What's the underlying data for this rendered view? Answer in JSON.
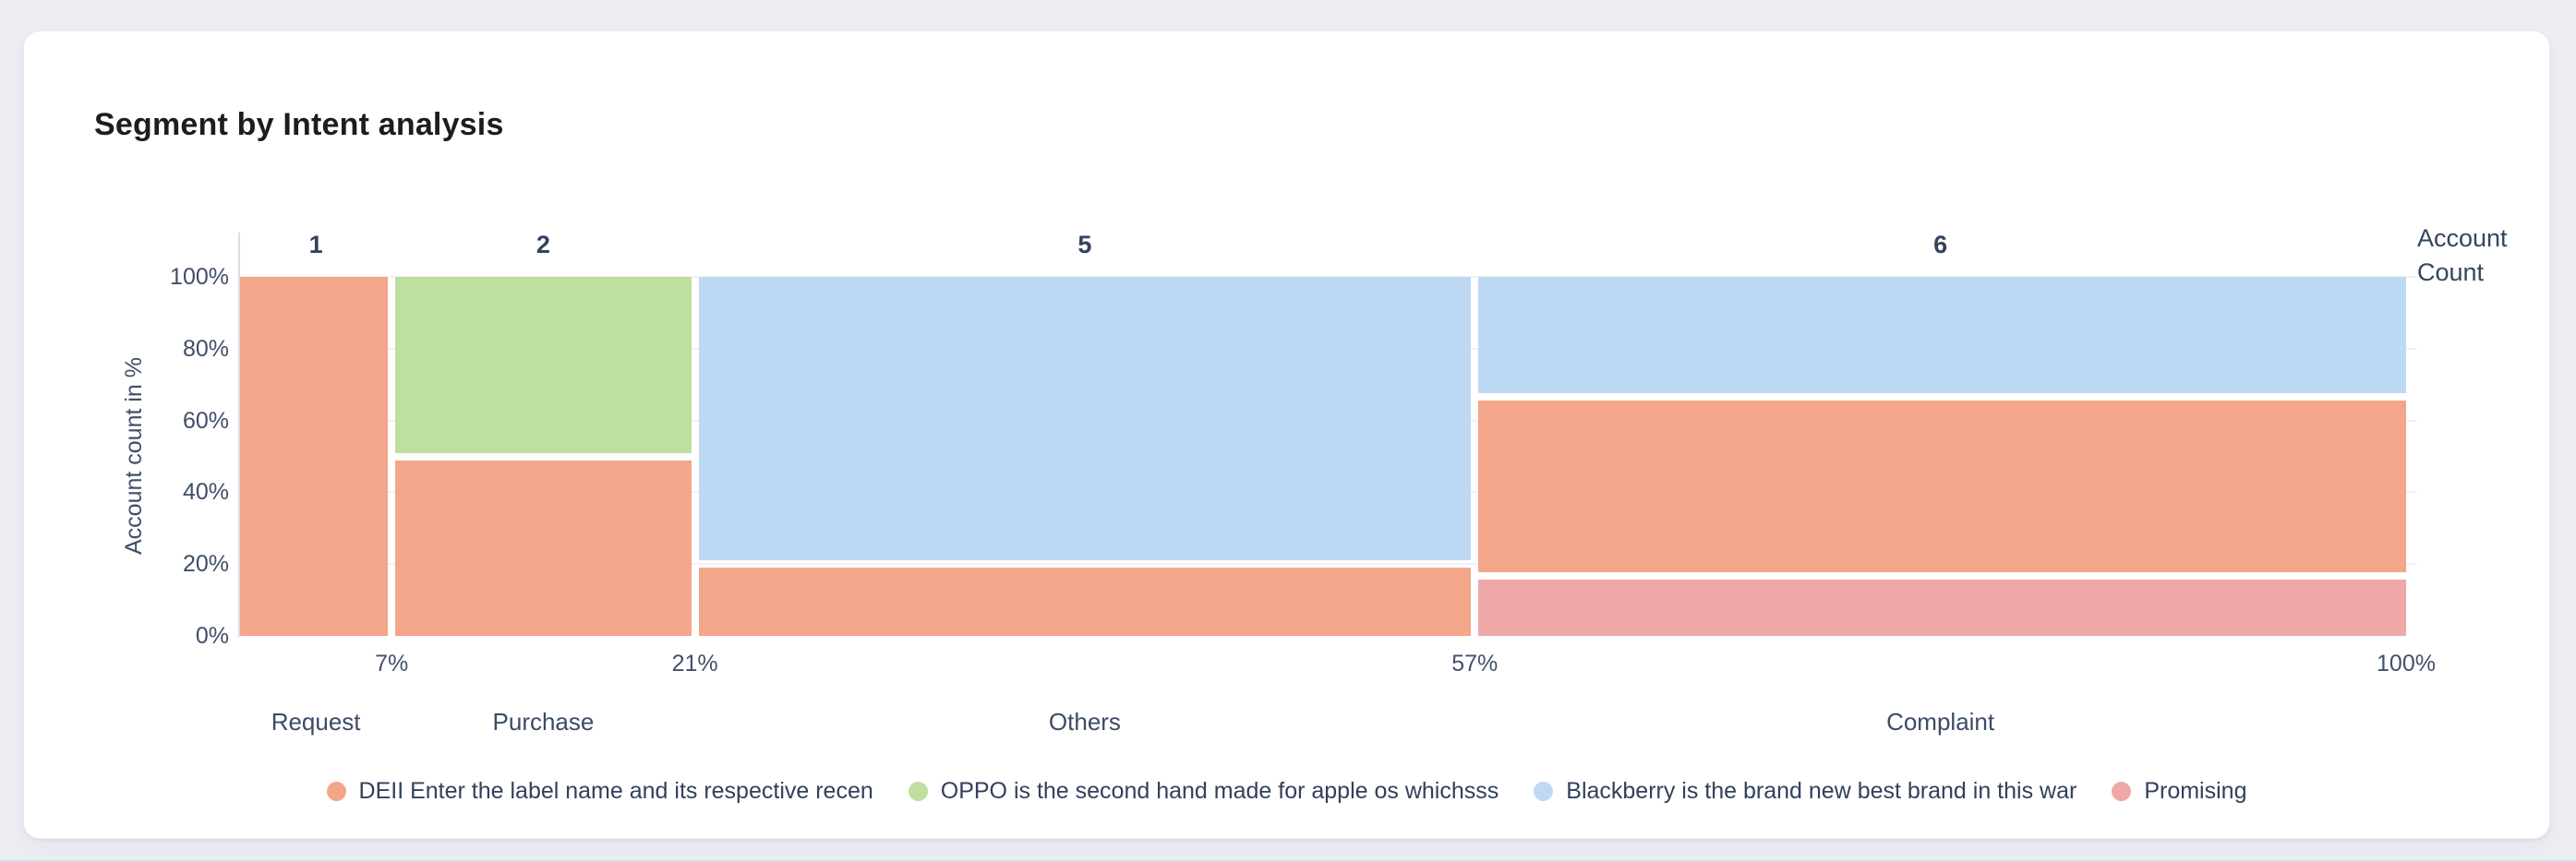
{
  "card": {
    "title": "Segment by Intent analysis"
  },
  "chart_data": {
    "type": "marimekko",
    "title": "Segment by Intent analysis",
    "ylabel": "Account count in %",
    "right_axis_label": "Account Count",
    "y_ticks": [
      "0%",
      "20%",
      "40%",
      "60%",
      "80%",
      "100%"
    ],
    "x_axis_unit": "percent of total account count",
    "grid": "horizontal",
    "legend_position": "bottom",
    "series": [
      {
        "name": "DEII Enter the label name and its respective recen",
        "color": "#f3a68a"
      },
      {
        "name": "OPPO is the second hand made for apple os whichsss",
        "color": "#bedf9d"
      },
      {
        "name": "Blackberry is the brand new best brand in this war",
        "color": "#bed9f4"
      },
      {
        "name": "Promising",
        "color": "#efa8a8"
      }
    ],
    "columns": [
      {
        "label": "Request",
        "count": 1,
        "x_start_pct": 0,
        "x_end_pct": 7,
        "boundary_label": "7%",
        "segments": [
          {
            "series": 0,
            "pct": 100
          }
        ]
      },
      {
        "label": "Purchase",
        "count": 2,
        "x_start_pct": 7,
        "x_end_pct": 21,
        "boundary_label": "21%",
        "segments": [
          {
            "series": 1,
            "pct": 50
          },
          {
            "series": 0,
            "pct": 50
          }
        ]
      },
      {
        "label": "Others",
        "count": 5,
        "x_start_pct": 21,
        "x_end_pct": 57,
        "boundary_label": "57%",
        "segments": [
          {
            "series": 2,
            "pct": 80
          },
          {
            "series": 0,
            "pct": 20
          }
        ]
      },
      {
        "label": "Complaint",
        "count": 6,
        "x_start_pct": 57,
        "x_end_pct": 100,
        "boundary_label": "100%",
        "segments": [
          {
            "series": 2,
            "pct": 33.33
          },
          {
            "series": 0,
            "pct": 50
          },
          {
            "series": 3,
            "pct": 16.67
          }
        ]
      }
    ]
  },
  "legend": {
    "items": [
      {
        "label": "DEII Enter the label name and its respective recen",
        "color": "#f3a68a"
      },
      {
        "label": "OPPO is the second hand made for apple os whichsss",
        "color": "#bedf9d"
      },
      {
        "label": "Blackberry is the brand new best brand in this war",
        "color": "#bed9f4"
      },
      {
        "label": "Promising",
        "color": "#efa8a8"
      }
    ]
  }
}
